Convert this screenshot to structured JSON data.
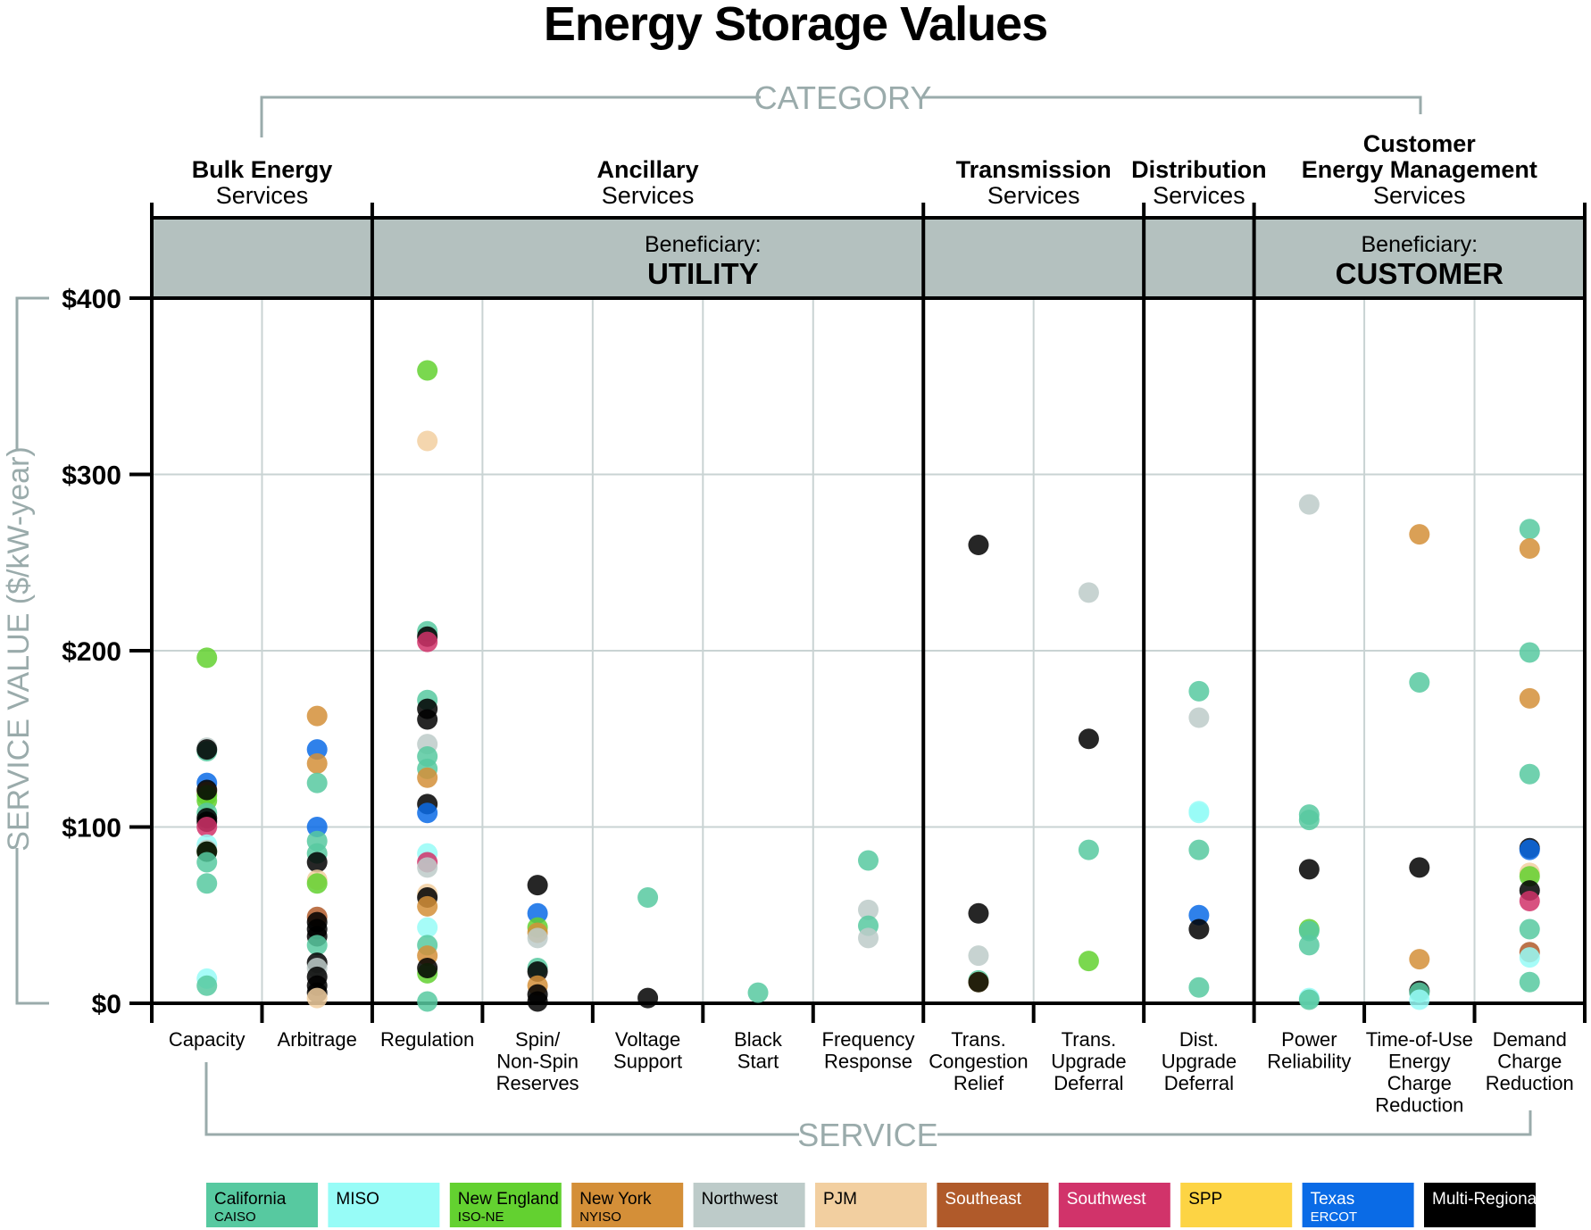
{
  "chart_data": {
    "type": "scatter",
    "title": "Energy Storage Values",
    "ylabel": "SERVICE VALUE ($/kW-year)",
    "xlabel": "SERVICE",
    "category_label": "CATEGORY",
    "ylim": [
      0,
      400
    ],
    "yticks": [
      0,
      100,
      200,
      300,
      400
    ],
    "ytick_labels": [
      "$0",
      "$100",
      "$200",
      "$300",
      "$400"
    ],
    "grid": true,
    "legend_placement": "bottom",
    "categories": [
      {
        "lines": [
          "Bulk Energy",
          "Services"
        ],
        "columns": [
          0,
          1
        ]
      },
      {
        "lines": [
          "Ancillary",
          "Services"
        ],
        "columns": [
          2,
          6
        ]
      },
      {
        "lines": [
          "Transmission",
          "Services"
        ],
        "columns": [
          7,
          8
        ]
      },
      {
        "lines": [
          "Distribution",
          "Services"
        ],
        "columns": [
          9,
          9
        ]
      },
      {
        "lines": [
          "Customer",
          "Energy Management",
          "Services"
        ],
        "columns": [
          10,
          12
        ]
      }
    ],
    "beneficiaries": [
      {
        "label": "Beneficiary:",
        "value": "UTILITY",
        "columns": [
          0,
          9
        ]
      },
      {
        "label": "Beneficiary:",
        "value": "CUSTOMER",
        "columns": [
          10,
          12
        ]
      }
    ],
    "regions": [
      {
        "key": "CA",
        "name": "California",
        "sub": "CAISO",
        "color": "#57c9a0",
        "text": "#000000"
      },
      {
        "key": "MISO",
        "name": "MISO",
        "sub": "",
        "color": "#97fcf7",
        "text": "#000000"
      },
      {
        "key": "NE",
        "name": "New England",
        "sub": "ISO-NE",
        "color": "#63d130",
        "text": "#000000"
      },
      {
        "key": "NY",
        "name": "New York",
        "sub": "NYISO",
        "color": "#d48f38",
        "text": "#000000"
      },
      {
        "key": "NW",
        "name": "Northwest",
        "sub": "",
        "color": "#bdcbc9",
        "text": "#000000"
      },
      {
        "key": "PJM",
        "name": "PJM",
        "sub": "",
        "color": "#f2cfa0",
        "text": "#000000"
      },
      {
        "key": "SE",
        "name": "Southeast",
        "sub": "",
        "color": "#b05a2a",
        "text": "#ffffff"
      },
      {
        "key": "SW",
        "name": "Southwest",
        "sub": "",
        "color": "#d1336a",
        "text": "#ffffff"
      },
      {
        "key": "SPP",
        "name": "SPP",
        "sub": "",
        "color": "#fdd444",
        "text": "#000000"
      },
      {
        "key": "TX",
        "name": "Texas",
        "sub": "ERCOT",
        "color": "#0a6be6",
        "text": "#ffffff"
      },
      {
        "key": "MR",
        "name": "Multi-Regional",
        "sub": "",
        "color": "#000000",
        "text": "#ffffff"
      }
    ],
    "services": [
      {
        "lines": [
          "Capacity"
        ],
        "points": [
          [
            196,
            "NE"
          ],
          [
            145,
            "NW"
          ],
          [
            143,
            "CA"
          ],
          [
            144,
            "MR"
          ],
          [
            125,
            "TX"
          ],
          [
            120,
            "NY"
          ],
          [
            118,
            "NE"
          ],
          [
            115,
            "NE"
          ],
          [
            121,
            "MR"
          ],
          [
            108,
            "CA"
          ],
          [
            105,
            "MR"
          ],
          [
            103,
            "MR"
          ],
          [
            100,
            "SW"
          ],
          [
            90,
            "MISO"
          ],
          [
            87,
            "NW"
          ],
          [
            86,
            "NE"
          ],
          [
            86,
            "MR"
          ],
          [
            80,
            "CA"
          ],
          [
            68,
            "CA"
          ],
          [
            14,
            "MISO"
          ],
          [
            10,
            "CA"
          ]
        ]
      },
      {
        "lines": [
          "Arbitrage"
        ],
        "points": [
          [
            163,
            "NY"
          ],
          [
            144,
            "TX"
          ],
          [
            136,
            "NY"
          ],
          [
            125,
            "CA"
          ],
          [
            100,
            "TX"
          ],
          [
            92,
            "CA"
          ],
          [
            85,
            "CA"
          ],
          [
            80,
            "MR"
          ],
          [
            70,
            "PJM"
          ],
          [
            68,
            "NE"
          ],
          [
            49,
            "SE"
          ],
          [
            46,
            "MR"
          ],
          [
            42,
            "MR"
          ],
          [
            38,
            "MR"
          ],
          [
            33,
            "CA"
          ],
          [
            23,
            "MR"
          ],
          [
            20,
            "NW"
          ],
          [
            15,
            "MR"
          ],
          [
            10,
            "MR"
          ],
          [
            6,
            "MR"
          ],
          [
            3,
            "PJM"
          ]
        ]
      },
      {
        "lines": [
          "Regulation"
        ],
        "points": [
          [
            359,
            "NE"
          ],
          [
            319,
            "PJM"
          ],
          [
            211,
            "CA"
          ],
          [
            208,
            "MR"
          ],
          [
            205,
            "SW"
          ],
          [
            172,
            "CA"
          ],
          [
            167,
            "MR"
          ],
          [
            161,
            "MR"
          ],
          [
            147,
            "NW"
          ],
          [
            140,
            "CA"
          ],
          [
            133,
            "CA"
          ],
          [
            128,
            "NY"
          ],
          [
            113,
            "MR"
          ],
          [
            108,
            "TX"
          ],
          [
            85,
            "MISO"
          ],
          [
            80,
            "SW"
          ],
          [
            77,
            "NW"
          ],
          [
            62,
            "PJM"
          ],
          [
            60,
            "MR"
          ],
          [
            55,
            "NY"
          ],
          [
            43,
            "MISO"
          ],
          [
            33,
            "CA"
          ],
          [
            27,
            "NY"
          ],
          [
            17,
            "NE"
          ],
          [
            20,
            "MR"
          ],
          [
            1,
            "CA"
          ]
        ]
      },
      {
        "lines": [
          "Spin/",
          "Non-Spin",
          "Reserves"
        ],
        "points": [
          [
            67,
            "MR"
          ],
          [
            51,
            "TX"
          ],
          [
            43,
            "NE"
          ],
          [
            40,
            "NY"
          ],
          [
            37,
            "NW"
          ],
          [
            20,
            "CA"
          ],
          [
            18,
            "MR"
          ],
          [
            10,
            "NY"
          ],
          [
            5,
            "MR"
          ],
          [
            1,
            "MR"
          ]
        ]
      },
      {
        "lines": [
          "Voltage",
          "Support"
        ],
        "points": [
          [
            60,
            "CA"
          ],
          [
            3,
            "MR"
          ]
        ]
      },
      {
        "lines": [
          "Black",
          "Start"
        ],
        "points": [
          [
            6,
            "CA"
          ]
        ]
      },
      {
        "lines": [
          "Frequency",
          "Response"
        ],
        "points": [
          [
            81,
            "CA"
          ],
          [
            53,
            "NW"
          ],
          [
            44,
            "CA"
          ],
          [
            37,
            "NW"
          ]
        ]
      },
      {
        "lines": [
          "Trans.",
          "Congestion",
          "Relief"
        ],
        "points": [
          [
            260,
            "MR"
          ],
          [
            51,
            "MR"
          ],
          [
            27,
            "NW"
          ],
          [
            13,
            "CA"
          ],
          [
            12,
            "SPP"
          ],
          [
            12,
            "MR"
          ]
        ]
      },
      {
        "lines": [
          "Trans.",
          "Upgrade",
          "Deferral"
        ],
        "points": [
          [
            233,
            "NW"
          ],
          [
            150,
            "MR"
          ],
          [
            87,
            "CA"
          ],
          [
            24,
            "NE"
          ]
        ]
      },
      {
        "lines": [
          "Dist.",
          "Upgrade",
          "Deferral"
        ],
        "points": [
          [
            177,
            "CA"
          ],
          [
            162,
            "NW"
          ],
          [
            109,
            "MISO"
          ],
          [
            108,
            "MISO"
          ],
          [
            87,
            "CA"
          ],
          [
            50,
            "TX"
          ],
          [
            42,
            "MR"
          ],
          [
            9,
            "CA"
          ]
        ]
      },
      {
        "lines": [
          "Power",
          "Reliability"
        ],
        "points": [
          [
            283,
            "NW"
          ],
          [
            107,
            "CA"
          ],
          [
            104,
            "CA"
          ],
          [
            76,
            "MR"
          ],
          [
            42,
            "NE"
          ],
          [
            41,
            "CA"
          ],
          [
            33,
            "CA"
          ],
          [
            3,
            "MISO"
          ],
          [
            2,
            "CA"
          ]
        ]
      },
      {
        "lines": [
          "Time-of-Use",
          "Energy",
          "Charge",
          "Reduction"
        ],
        "points": [
          [
            266,
            "NY"
          ],
          [
            182,
            "CA"
          ],
          [
            77,
            "MR"
          ],
          [
            25,
            "NY"
          ],
          [
            7,
            "MR"
          ],
          [
            6,
            "CA"
          ],
          [
            2,
            "MISO"
          ]
        ]
      },
      {
        "lines": [
          "Demand",
          "Charge",
          "Reduction"
        ],
        "points": [
          [
            269,
            "CA"
          ],
          [
            258,
            "NY"
          ],
          [
            199,
            "CA"
          ],
          [
            173,
            "NY"
          ],
          [
            130,
            "CA"
          ],
          [
            88,
            "MR"
          ],
          [
            87,
            "TX"
          ],
          [
            74,
            "PJM"
          ],
          [
            72,
            "NE"
          ],
          [
            64,
            "MR"
          ],
          [
            58,
            "SW"
          ],
          [
            42,
            "CA"
          ],
          [
            29,
            "SE"
          ],
          [
            26,
            "MISO"
          ],
          [
            12,
            "CA"
          ]
        ]
      }
    ]
  }
}
